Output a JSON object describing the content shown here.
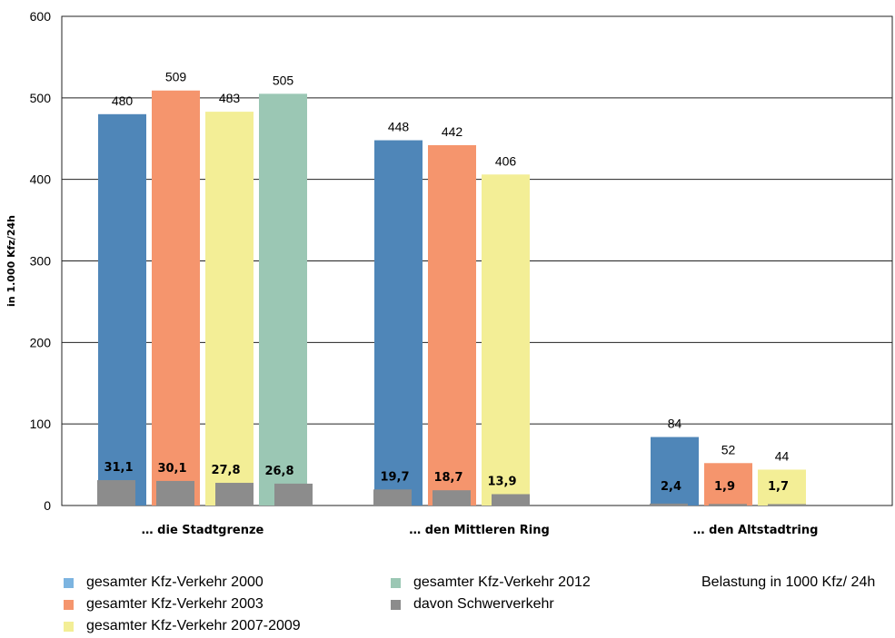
{
  "chart_data": {
    "type": "bar",
    "ylabel": "in 1.000 Kfz/24h",
    "ylim": [
      0,
      600
    ],
    "yticks": [
      "0",
      "100",
      "200",
      "300",
      "400",
      "500",
      "600"
    ],
    "grid": "horizontal",
    "categories": [
      "… die Stadtgrenze",
      "… den Mittleren Ring",
      "… den Altstadtring"
    ],
    "series": [
      {
        "name": "gesamter Kfz-Verkehr 2000",
        "color": "#4f86b8",
        "legend_color": "#7cb4e0",
        "values": [
          480,
          448,
          84
        ],
        "labels": [
          "480",
          "448",
          "84"
        ]
      },
      {
        "name": "gesamter Kfz-Verkehr 2003",
        "color": "#f5956d",
        "legend_color": "#f5956d",
        "values": [
          509,
          442,
          52
        ],
        "labels": [
          "509",
          "442",
          "52"
        ]
      },
      {
        "name": "gesamter Kfz-Verkehr 2007-2009",
        "color": "#f3ee96",
        "legend_color": "#f3ee96",
        "values": [
          483,
          406,
          44
        ],
        "labels": [
          "483",
          "406",
          "44"
        ]
      },
      {
        "name": "gesamter Kfz-Verkehr 2012",
        "color": "#9bc7b4",
        "legend_color": "#9bc7b4",
        "values": [
          505,
          null,
          null
        ],
        "labels": [
          "505",
          "",
          ""
        ]
      }
    ],
    "heavy_traffic": {
      "name": "davon Schwerverkehr",
      "color": "#8c8c8c",
      "values": [
        [
          31.1,
          30.1,
          27.8,
          26.8
        ],
        [
          19.7,
          18.7,
          13.9,
          null
        ],
        [
          2.4,
          1.9,
          1.7,
          null
        ]
      ],
      "labels": [
        [
          "31,1",
          "30,1",
          "27,8",
          "26,8"
        ],
        [
          "19,7",
          "18,7",
          "13,9",
          ""
        ],
        [
          "2,4",
          "1,9",
          "1,7",
          ""
        ]
      ]
    },
    "legend_placement": "bottom"
  },
  "legend": {
    "items": [
      {
        "label": "gesamter Kfz-Verkehr 2000",
        "color": "#7cb4e0"
      },
      {
        "label": "gesamter Kfz-Verkehr 2003",
        "color": "#f5956d"
      },
      {
        "label": "gesamter Kfz-Verkehr 2007-2009",
        "color": "#f3ee96"
      },
      {
        "label": "gesamter Kfz-Verkehr 2012",
        "color": "#9bc7b4"
      },
      {
        "label": "davon Schwerverkehr",
        "color": "#8c8c8c"
      }
    ]
  },
  "note": "Belastung in 1000 Kfz/ 24h"
}
